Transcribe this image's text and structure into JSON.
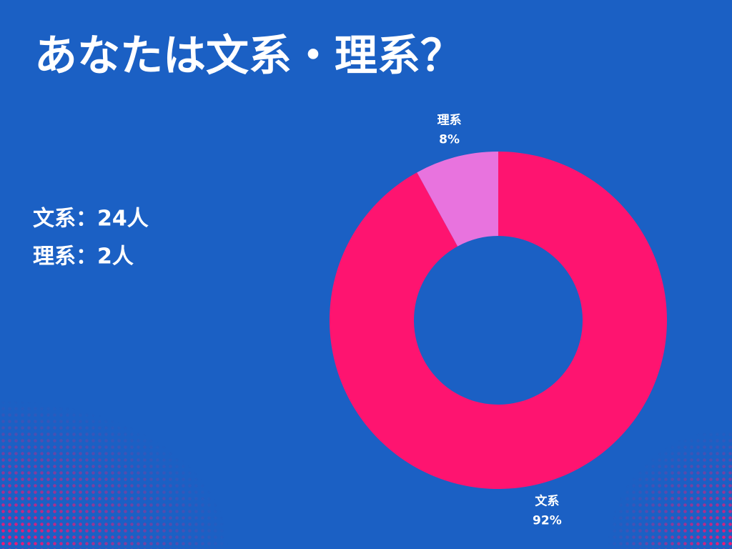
{
  "title": "あなたは文系・理系？",
  "notes": [
    "文系：24人",
    "理系：2人"
  ],
  "chart_data": {
    "type": "donut",
    "categories": [
      "文系",
      "理系"
    ],
    "values": [
      92,
      8
    ],
    "value_labels": [
      "92%",
      "8%"
    ],
    "colors": [
      "#fe1470",
      "#e873de"
    ]
  }
}
